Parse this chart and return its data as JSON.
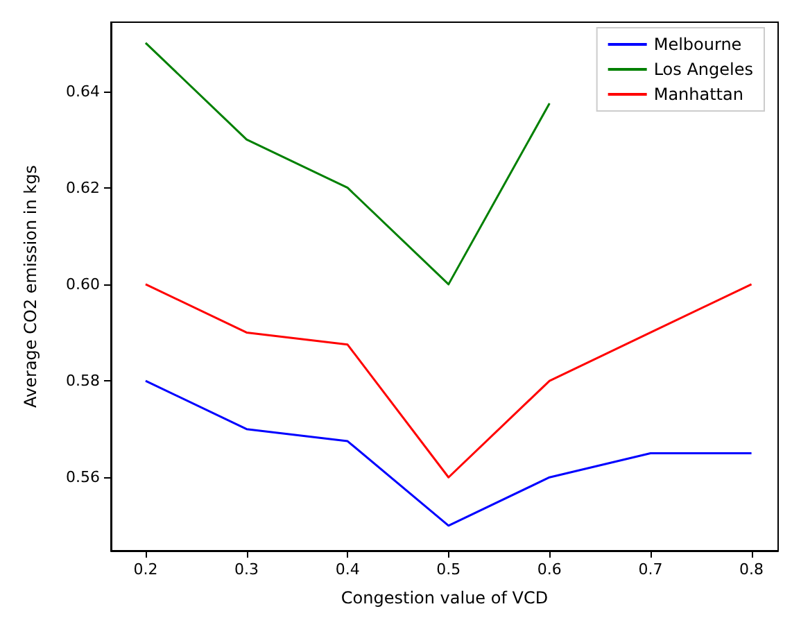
{
  "chart_data": {
    "type": "line",
    "xlabel": "Congestion value of VCD",
    "ylabel": "Average CO2 emission in kgs",
    "x": [
      0.2,
      0.3,
      0.4,
      0.5,
      0.6,
      0.7,
      0.8
    ],
    "series": [
      {
        "name": "Melbourne",
        "color": "#0000ff",
        "values": [
          0.58,
          0.57,
          0.5675,
          0.55,
          0.56,
          0.565,
          0.565
        ]
      },
      {
        "name": "Los Angeles",
        "color": "#008000",
        "values": [
          0.65,
          0.63,
          0.62,
          0.6,
          0.6375,
          null,
          null
        ]
      },
      {
        "name": "Manhattan",
        "color": "#ff0000",
        "values": [
          0.6,
          0.59,
          0.5875,
          0.56,
          0.58,
          0.59,
          0.6
        ]
      }
    ],
    "xlim": [
      0.1657,
      0.8264
    ],
    "xticks": [
      0.2,
      0.3,
      0.4,
      0.5,
      0.6,
      0.7,
      0.8
    ],
    "ylim": [
      0.5448,
      0.6543
    ],
    "yticks": [
      0.56,
      0.58,
      {
        "value": 0.6,
        "label": "0.60"
      },
      0.62,
      0.64
    ],
    "legend": "top right",
    "grid": false,
    "marker": "none",
    "line_style": "solid"
  }
}
